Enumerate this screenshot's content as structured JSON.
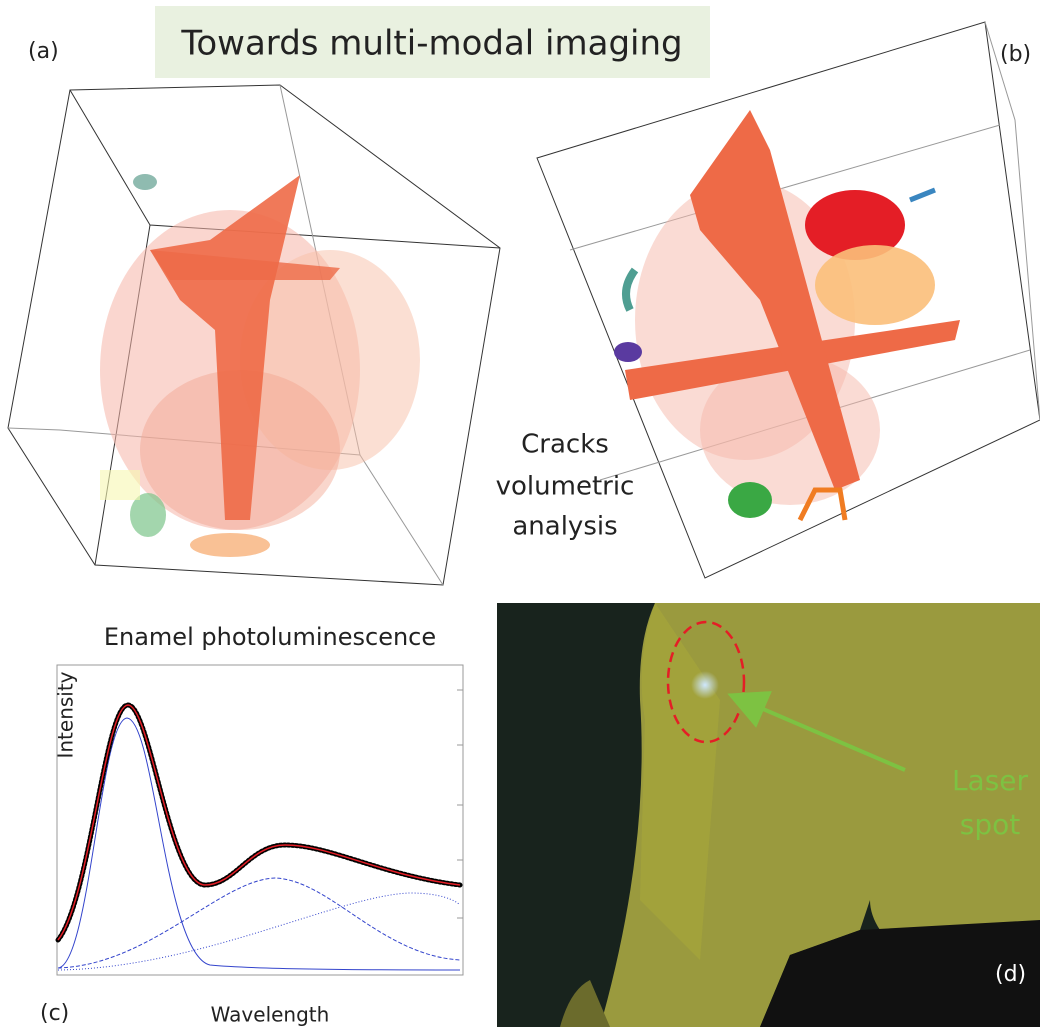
{
  "header": {
    "title": "Towards multi-modal imaging"
  },
  "panels": {
    "a": {
      "label": "(a)"
    },
    "b": {
      "label": "(b)",
      "caption": [
        "Cracks",
        "volumetric",
        "analysis"
      ]
    },
    "c": {
      "label": "(c)",
      "title": "Enamel photoluminescence",
      "y_label": "Intensity",
      "x_label": "Wavelength"
    },
    "d": {
      "label": "(d)",
      "annotation": [
        "Laser",
        "spot"
      ]
    }
  }
}
